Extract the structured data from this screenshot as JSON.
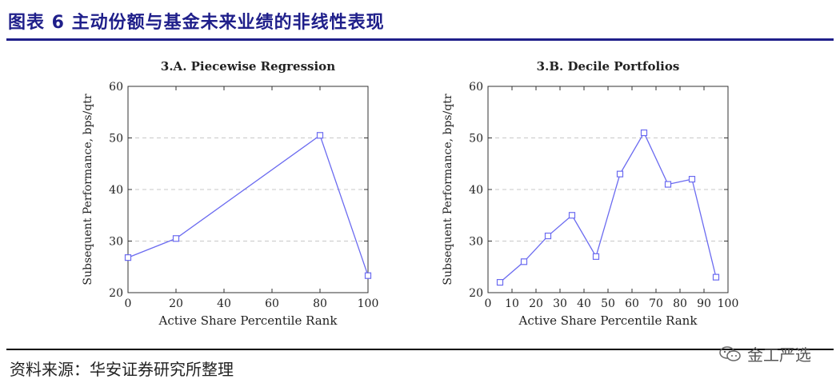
{
  "header": {
    "title": "图表 6 主动份额与基金未来业绩的非线性表现"
  },
  "footer": {
    "source": "资料来源：华安证券研究所整理",
    "watermark": "金工严选"
  },
  "colors": {
    "accent": "#1f1f8a",
    "series": "#6b6bf0"
  },
  "chart_data": [
    {
      "type": "line",
      "title": "3.A. Piecewise Regression",
      "xlabel": "Active Share Percentile Rank",
      "ylabel": "Subsequent Performance, bps/qtr",
      "xlim": [
        0,
        100
      ],
      "ylim": [
        20,
        60
      ],
      "xticks": [
        0,
        20,
        40,
        60,
        80,
        100
      ],
      "yticks": [
        20,
        30,
        40,
        50,
        60
      ],
      "grid": "horizontal dashed",
      "x": [
        0,
        20,
        80,
        100
      ],
      "y": [
        26.8,
        30.5,
        50.5,
        23.3
      ]
    },
    {
      "type": "line",
      "title": "3.B. Decile Portfolios",
      "xlabel": "Active Share Percentile Rank",
      "ylabel": "Subsequent Performance, bps/qtr",
      "xlim": [
        0,
        100
      ],
      "ylim": [
        20,
        60
      ],
      "xticks": [
        0,
        10,
        20,
        30,
        40,
        50,
        60,
        70,
        80,
        90,
        100
      ],
      "yticks": [
        20,
        30,
        40,
        50,
        60
      ],
      "grid": "horizontal dashed",
      "x": [
        5,
        15,
        25,
        35,
        45,
        55,
        65,
        75,
        85,
        95
      ],
      "y": [
        22,
        26,
        31,
        35,
        27,
        43,
        51,
        41,
        42,
        23
      ]
    }
  ]
}
